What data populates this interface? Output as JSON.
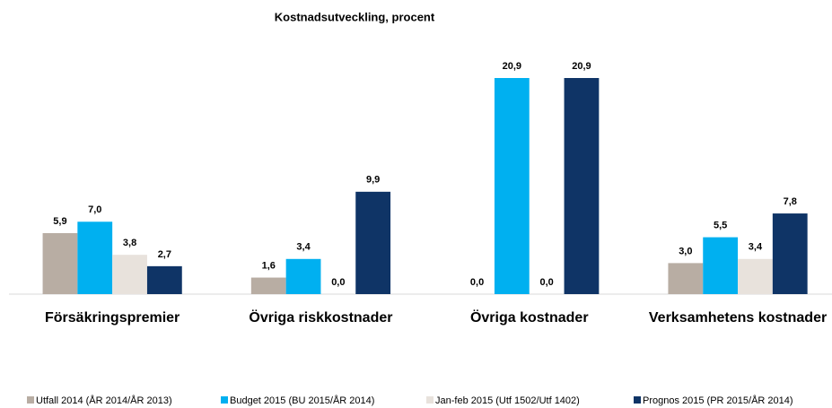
{
  "chart_data": {
    "type": "bar",
    "title": "Kostnadsutveckling, procent",
    "categories": [
      "Försäkringspremier",
      "Övriga riskkostnader",
      "Övriga kostnader",
      "Verksamhetens kostnader"
    ],
    "series": [
      {
        "name": "Utfall 2014 (ÅR 2014/ÅR 2013)",
        "color": "#b8ada3",
        "values": [
          5.9,
          1.6,
          0.0,
          3.0
        ],
        "value_labels": [
          "5,9",
          "1,6",
          "0,0",
          "3,0"
        ]
      },
      {
        "name": "Budget 2015 (BU 2015/ÅR 2014)",
        "color": "#00b0f0",
        "values": [
          7.0,
          3.4,
          20.9,
          5.5
        ],
        "value_labels": [
          "7,0",
          "3,4",
          "20,9",
          "5,5"
        ]
      },
      {
        "name": "Jan-feb 2015 (Utf 1502/Utf 1402)",
        "color": "#e8e2dc",
        "values": [
          3.8,
          0.0,
          0.0,
          3.4
        ],
        "value_labels": [
          "3,8",
          "0,0",
          "0,0",
          "3,4"
        ]
      },
      {
        "name": "Prognos 2015 (PR 2015/ÅR 2014)",
        "color": "#0f3466",
        "values": [
          2.7,
          9.9,
          20.9,
          7.8
        ],
        "value_labels": [
          "2,7",
          "9,9",
          "20,9",
          "7,8"
        ]
      }
    ],
    "legend": "bottom"
  }
}
